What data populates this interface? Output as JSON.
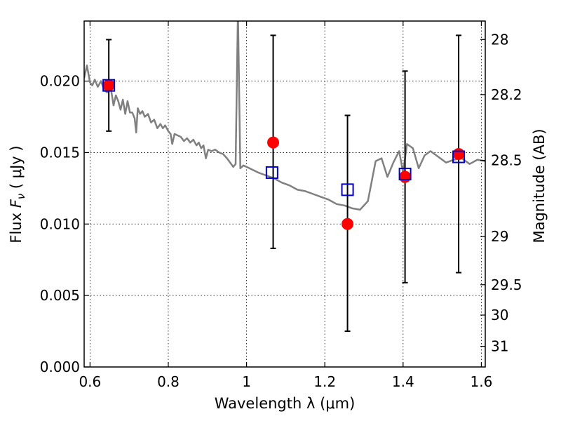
{
  "chart_data": {
    "type": "scatter",
    "xlabel": "Wavelength  λ (μm)",
    "ylabel_prefix": "Flux  ",
    "ylabel_symbol": "F",
    "ylabel_sub": "ν",
    "ylabel_suffix": "  ( μJy )",
    "y2label": "Magnitude (AB)",
    "xlim": [
      0.585,
      1.61
    ],
    "ylim": [
      0.0,
      0.0242
    ],
    "grid": true,
    "x_ticks": [
      {
        "value": 0.6,
        "label": "0.6"
      },
      {
        "value": 0.8,
        "label": "0.8"
      },
      {
        "value": 1.0,
        "label": "1"
      },
      {
        "value": 1.2,
        "label": "1.2"
      },
      {
        "value": 1.4,
        "label": "1.4"
      },
      {
        "value": 1.6,
        "label": "1.6"
      }
    ],
    "y_ticks": [
      {
        "value": 0.0,
        "label": "0.000"
      },
      {
        "value": 0.005,
        "label": "0.005"
      },
      {
        "value": 0.01,
        "label": "0.010"
      },
      {
        "value": 0.015,
        "label": "0.015"
      },
      {
        "value": 0.02,
        "label": "0.020"
      }
    ],
    "y2_ticks": [
      {
        "magnitude": 28,
        "label": "28"
      },
      {
        "magnitude": 28.2,
        "label": "28.2"
      },
      {
        "magnitude": 28.5,
        "label": "28.5"
      },
      {
        "magnitude": 29,
        "label": "29"
      },
      {
        "magnitude": 29.5,
        "label": "29.5"
      },
      {
        "magnitude": 30,
        "label": "30"
      },
      {
        "magnitude": 31,
        "label": "31"
      }
    ],
    "model_spectrum": {
      "color": "#808080",
      "points": [
        [
          0.585,
          0.0202
        ],
        [
          0.592,
          0.0211
        ],
        [
          0.6,
          0.0199
        ],
        [
          0.606,
          0.0197
        ],
        [
          0.612,
          0.0201
        ],
        [
          0.62,
          0.0196
        ],
        [
          0.628,
          0.02
        ],
        [
          0.636,
          0.0194
        ],
        [
          0.644,
          0.0192
        ],
        [
          0.652,
          0.0197
        ],
        [
          0.66,
          0.0183
        ],
        [
          0.666,
          0.019
        ],
        [
          0.672,
          0.0186
        ],
        [
          0.678,
          0.018
        ],
        [
          0.684,
          0.0187
        ],
        [
          0.69,
          0.0177
        ],
        [
          0.696,
          0.0186
        ],
        [
          0.702,
          0.0178
        ],
        [
          0.708,
          0.0178
        ],
        [
          0.714,
          0.0174
        ],
        [
          0.718,
          0.0164
        ],
        [
          0.722,
          0.0181
        ],
        [
          0.728,
          0.0177
        ],
        [
          0.734,
          0.0179
        ],
        [
          0.74,
          0.0175
        ],
        [
          0.748,
          0.0177
        ],
        [
          0.756,
          0.0171
        ],
        [
          0.764,
          0.0173
        ],
        [
          0.772,
          0.0167
        ],
        [
          0.78,
          0.017
        ],
        [
          0.786,
          0.0167
        ],
        [
          0.792,
          0.0169
        ],
        [
          0.8,
          0.0165
        ],
        [
          0.806,
          0.0163
        ],
        [
          0.81,
          0.0156
        ],
        [
          0.816,
          0.0163
        ],
        [
          0.824,
          0.0162
        ],
        [
          0.832,
          0.0161
        ],
        [
          0.84,
          0.0158
        ],
        [
          0.848,
          0.016
        ],
        [
          0.856,
          0.0157
        ],
        [
          0.864,
          0.0159
        ],
        [
          0.872,
          0.0155
        ],
        [
          0.878,
          0.0157
        ],
        [
          0.884,
          0.0153
        ],
        [
          0.89,
          0.0155
        ],
        [
          0.896,
          0.0146
        ],
        [
          0.902,
          0.0152
        ],
        [
          0.91,
          0.0151
        ],
        [
          0.92,
          0.0152
        ],
        [
          0.93,
          0.015
        ],
        [
          0.94,
          0.0149
        ],
        [
          0.95,
          0.0146
        ],
        [
          0.958,
          0.0143
        ],
        [
          0.966,
          0.014
        ],
        [
          0.972,
          0.0142
        ],
        [
          0.978,
          0.025
        ],
        [
          0.984,
          0.0139
        ],
        [
          0.992,
          0.0141
        ],
        [
          1.0,
          0.014
        ],
        [
          1.015,
          0.0138
        ],
        [
          1.03,
          0.0136
        ],
        [
          1.05,
          0.0134
        ],
        [
          1.07,
          0.0132
        ],
        [
          1.09,
          0.0129
        ],
        [
          1.11,
          0.0127
        ],
        [
          1.13,
          0.0124
        ],
        [
          1.15,
          0.0123
        ],
        [
          1.17,
          0.0121
        ],
        [
          1.19,
          0.0119
        ],
        [
          1.21,
          0.0117
        ],
        [
          1.23,
          0.0114
        ],
        [
          1.25,
          0.0113
        ],
        [
          1.27,
          0.0111
        ],
        [
          1.29,
          0.011
        ],
        [
          1.31,
          0.0116
        ],
        [
          1.33,
          0.0144
        ],
        [
          1.345,
          0.0146
        ],
        [
          1.36,
          0.0133
        ],
        [
          1.375,
          0.0143
        ],
        [
          1.39,
          0.0151
        ],
        [
          1.4,
          0.0136
        ],
        [
          1.41,
          0.0156
        ],
        [
          1.425,
          0.0153
        ],
        [
          1.44,
          0.0139
        ],
        [
          1.455,
          0.0148
        ],
        [
          1.47,
          0.0151
        ],
        [
          1.49,
          0.0147
        ],
        [
          1.51,
          0.0143
        ],
        [
          1.53,
          0.0145
        ],
        [
          1.55,
          0.0146
        ],
        [
          1.57,
          0.0142
        ],
        [
          1.59,
          0.0145
        ],
        [
          1.61,
          0.0144
        ]
      ]
    },
    "observed": {
      "color": "#ff0000",
      "marker": "circle",
      "points": [
        {
          "x": 0.648,
          "y": 0.0197,
          "err_low": 0.0165,
          "err_high": 0.0229
        },
        {
          "x": 1.068,
          "y": 0.0157,
          "err_low": 0.0083,
          "err_high": 0.0232
        },
        {
          "x": 1.258,
          "y": 0.01,
          "err_low": 0.0025,
          "err_high": 0.0176
        },
        {
          "x": 1.405,
          "y": 0.0133,
          "err_low": 0.0059,
          "err_high": 0.0207
        },
        {
          "x": 1.542,
          "y": 0.0149,
          "err_low": 0.0066,
          "err_high": 0.0232
        }
      ]
    },
    "model_photometry": {
      "color": "#0000cc",
      "marker": "square",
      "points": [
        {
          "x": 0.648,
          "y": 0.0197
        },
        {
          "x": 1.065,
          "y": 0.0136
        },
        {
          "x": 1.258,
          "y": 0.0124
        },
        {
          "x": 1.405,
          "y": 0.0135
        },
        {
          "x": 1.542,
          "y": 0.0147
        }
      ]
    }
  }
}
